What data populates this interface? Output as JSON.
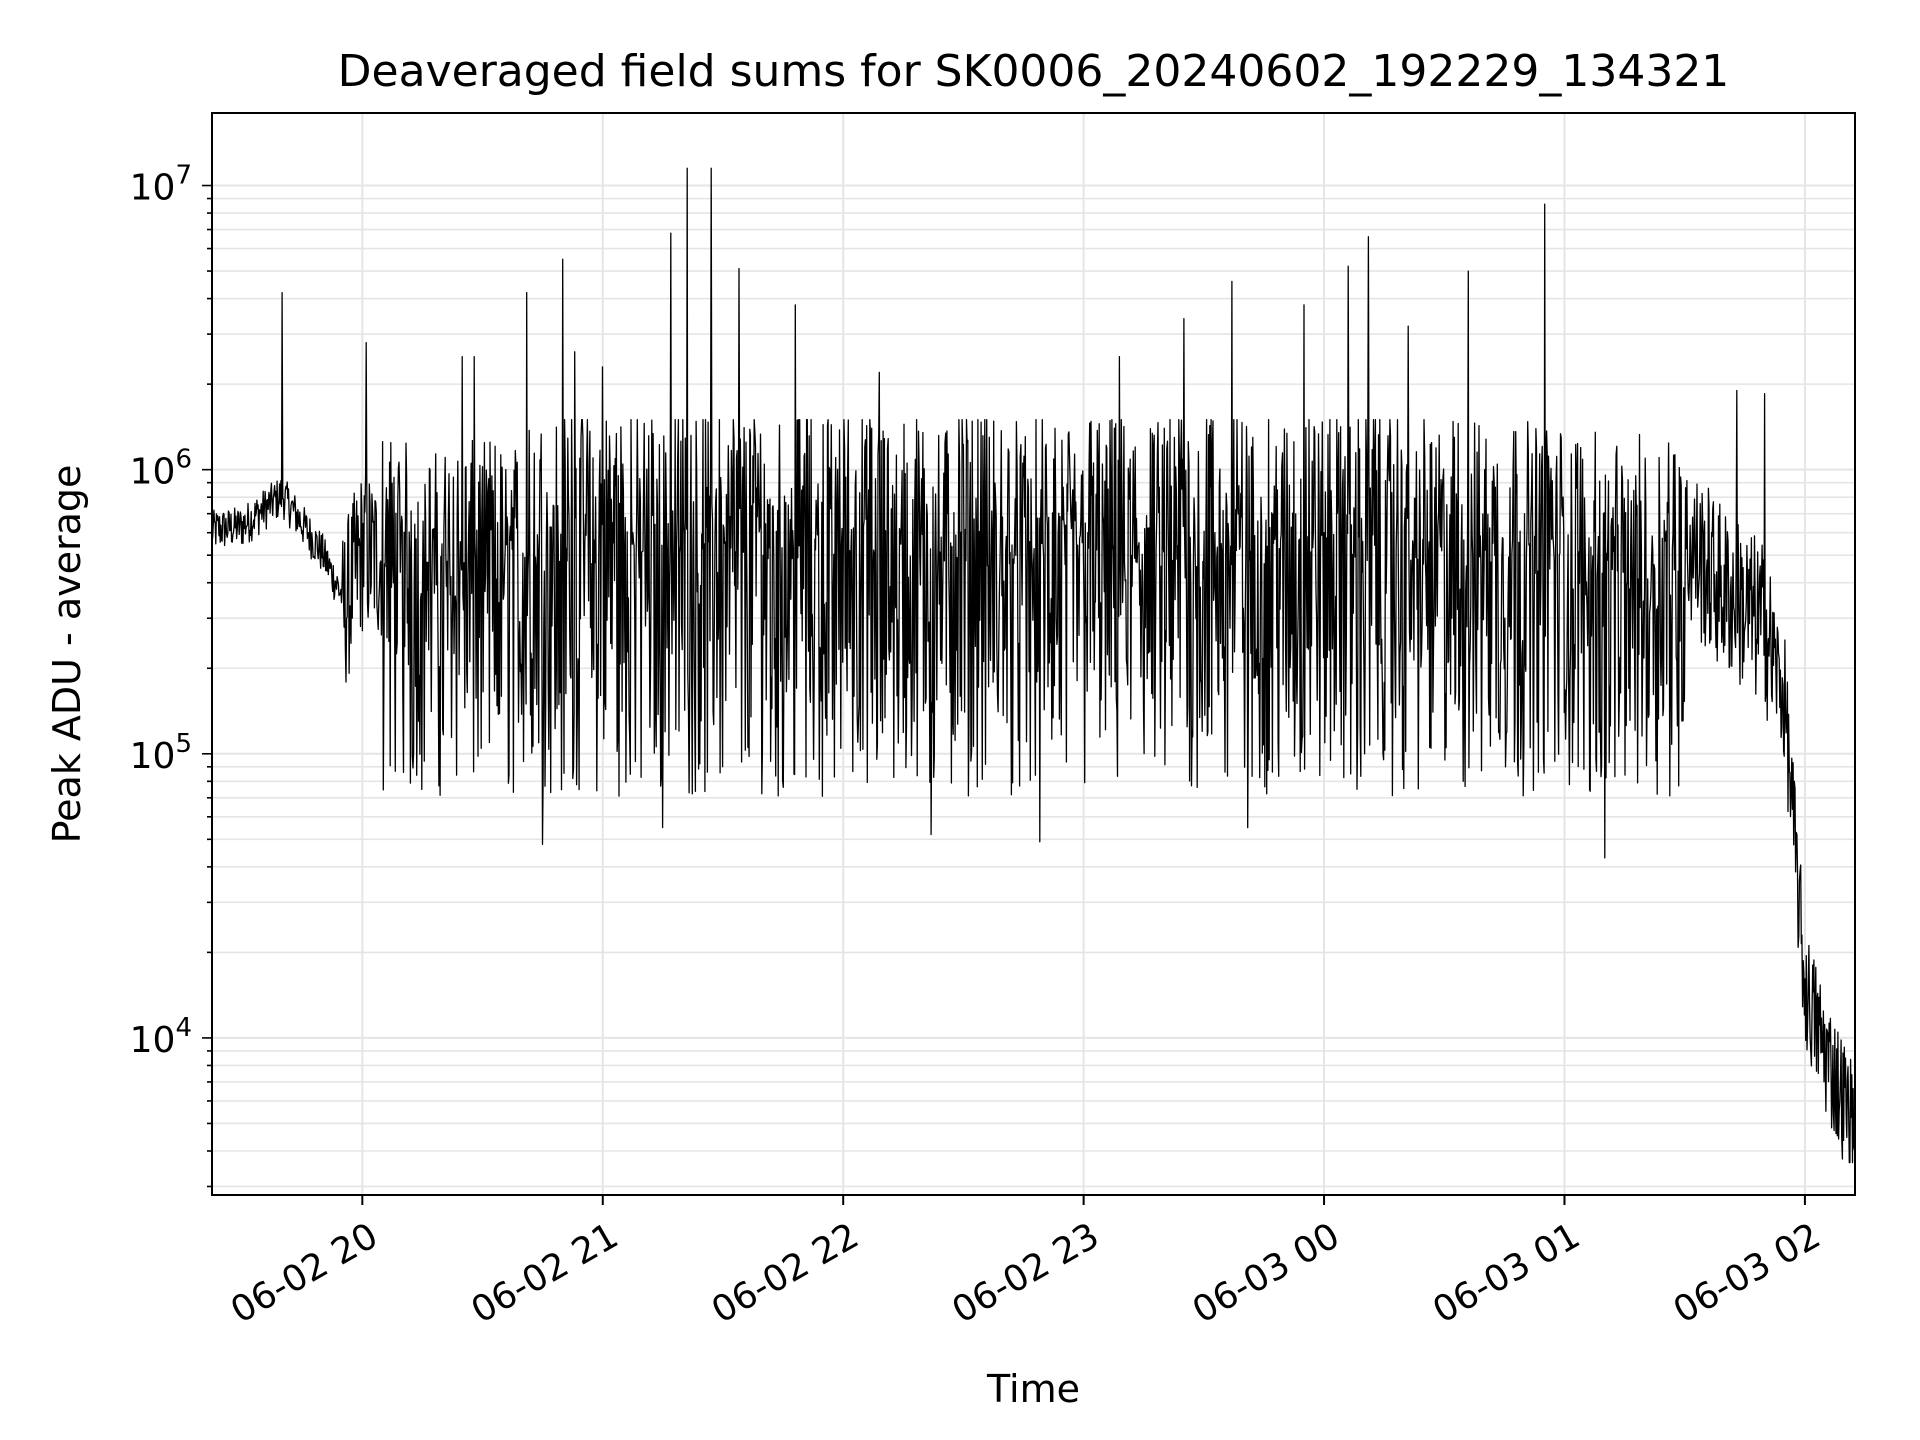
{
  "chart_data": {
    "type": "line",
    "title": "Deaveraged field sums for SK0006_20240602_192229_134321",
    "xlabel": "Time",
    "ylabel": "Peak ADU - average",
    "yscale": "log",
    "ylim": [
      2800,
      18000000
    ],
    "xlim": [
      "2024-06-02 19:22:29",
      "2024-06-03 02:12:30"
    ],
    "grid": true,
    "line_color": "#000000",
    "grid_color": "#e5e5e5",
    "x_ticks": [
      {
        "label": "06-02 20",
        "value": "2024-06-02 20:00"
      },
      {
        "label": "06-02 21",
        "value": "2024-06-02 21:00"
      },
      {
        "label": "06-02 22",
        "value": "2024-06-02 22:00"
      },
      {
        "label": "06-02 23",
        "value": "2024-06-02 23:00"
      },
      {
        "label": "06-03 00",
        "value": "2024-06-03 00:00"
      },
      {
        "label": "06-03 01",
        "value": "2024-06-03 01:00"
      },
      {
        "label": "06-03 02",
        "value": "2024-06-03 02:00"
      }
    ],
    "y_ticks": [
      {
        "base": "10",
        "exp": "4",
        "value": 10000
      },
      {
        "base": "10",
        "exp": "5",
        "value": 100000
      },
      {
        "base": "10",
        "exp": "6",
        "value": 1000000
      },
      {
        "base": "10",
        "exp": "7",
        "value": 10000000
      }
    ],
    "series": [
      {
        "x": [
          "2024-06-02 19:22:29",
          "2024-06-02 19:30",
          "2024-06-02 19:40",
          "2024-06-02 19:50",
          "2024-06-02 19:55",
          "2024-06-02 20:00",
          "2024-06-02 20:10",
          "2024-06-02 20:15",
          "2024-06-02 20:30",
          "2024-06-02 20:45",
          "2024-06-02 21:00",
          "2024-06-02 21:15",
          "2024-06-02 21:30",
          "2024-06-02 21:45",
          "2024-06-02 22:00",
          "2024-06-02 22:15",
          "2024-06-02 22:30",
          "2024-06-02 22:45",
          "2024-06-02 23:00",
          "2024-06-02 23:15",
          "2024-06-02 23:30",
          "2024-06-02 23:45",
          "2024-06-03 00:00",
          "2024-06-03 00:15",
          "2024-06-03 00:30",
          "2024-06-03 00:45",
          "2024-06-03 01:00",
          "2024-06-03 01:15",
          "2024-06-03 01:30",
          "2024-06-03 01:40",
          "2024-06-03 01:50",
          "2024-06-03 01:55",
          "2024-06-03 02:00",
          "2024-06-03 02:05",
          "2024-06-03 02:12"
        ],
        "y": [
          600000,
          620000,
          800000,
          500000,
          350000,
          600000,
          500000,
          450000,
          500000,
          600000,
          700000,
          650000,
          700000,
          650000,
          700000,
          600000,
          650000,
          600000,
          650000,
          600000,
          650000,
          600000,
          650000,
          650000,
          600000,
          600000,
          550000,
          500000,
          600000,
          400000,
          300000,
          150000,
          15000,
          9000,
          5000
        ]
      }
    ],
    "spikes": [
      {
        "x": "2024-06-02 19:40",
        "y": 4200000
      },
      {
        "x": "2024-06-02 20:01",
        "y": 2800000
      },
      {
        "x": "2024-06-02 20:25",
        "y": 2500000
      },
      {
        "x": "2024-06-02 20:28",
        "y": 2500000
      },
      {
        "x": "2024-06-02 20:41",
        "y": 4200000
      },
      {
        "x": "2024-06-02 20:53",
        "y": 2600000
      },
      {
        "x": "2024-06-02 21:00",
        "y": 2300000
      },
      {
        "x": "2024-06-02 20:50",
        "y": 5500000
      },
      {
        "x": "2024-06-02 21:17",
        "y": 6800000
      },
      {
        "x": "2024-06-02 21:21",
        "y": 11500000
      },
      {
        "x": "2024-06-02 21:27",
        "y": 11500000
      },
      {
        "x": "2024-06-02 21:34",
        "y": 5100000
      },
      {
        "x": "2024-06-02 21:48",
        "y": 3800000
      },
      {
        "x": "2024-06-02 22:09",
        "y": 2200000
      },
      {
        "x": "2024-06-02 23:09",
        "y": 2500000
      },
      {
        "x": "2024-06-02 23:25",
        "y": 3400000
      },
      {
        "x": "2024-06-02 23:37",
        "y": 4600000
      },
      {
        "x": "2024-06-02 23:55",
        "y": 3800000
      },
      {
        "x": "2024-06-03 00:06",
        "y": 5200000
      },
      {
        "x": "2024-06-03 00:11",
        "y": 6600000
      },
      {
        "x": "2024-06-03 00:21",
        "y": 3200000
      },
      {
        "x": "2024-06-03 00:36",
        "y": 5000000
      },
      {
        "x": "2024-06-03 00:55",
        "y": 8600000
      },
      {
        "x": "2024-06-03 01:43",
        "y": 1900000
      },
      {
        "x": "2024-06-03 01:50",
        "y": 1850000
      }
    ],
    "dips": [
      {
        "x": "2024-06-02 20:45",
        "y": 48000
      },
      {
        "x": "2024-06-02 21:15",
        "y": 55000
      },
      {
        "x": "2024-06-02 22:22",
        "y": 52000
      },
      {
        "x": "2024-06-02 22:49",
        "y": 49000
      },
      {
        "x": "2024-06-02 23:41",
        "y": 55000
      },
      {
        "x": "2024-06-03 01:10",
        "y": 43000
      }
    ]
  }
}
